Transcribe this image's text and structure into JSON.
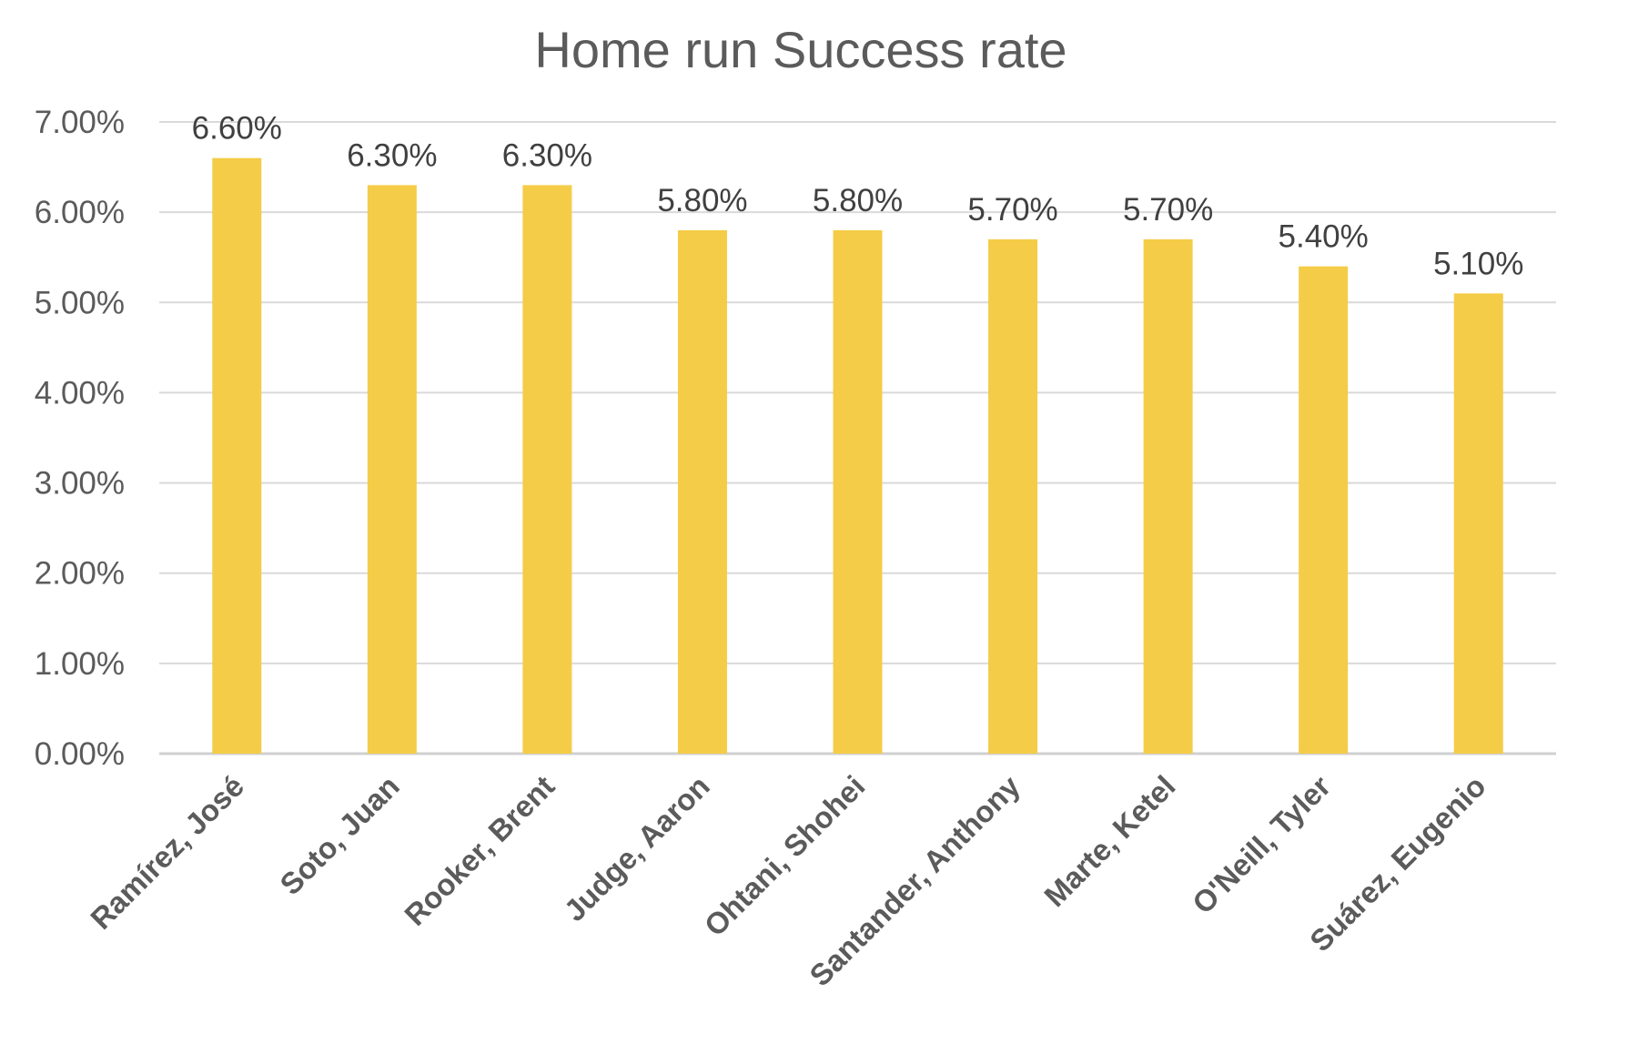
{
  "chart_data": {
    "type": "bar",
    "title": "Home run Success rate",
    "categories": [
      "Ramírez, José",
      "Soto, Juan",
      "Rooker, Brent",
      "Judge, Aaron",
      "Ohtani, Shohei",
      "Santander, Anthony",
      "Marte, Ketel",
      "O'Neill, Tyler",
      "Suárez, Eugenio"
    ],
    "values": [
      6.6,
      6.3,
      6.3,
      5.8,
      5.8,
      5.7,
      5.7,
      5.4,
      5.1
    ],
    "value_labels": [
      "6.60%",
      "6.30%",
      "6.30%",
      "5.80%",
      "5.80%",
      "5.70%",
      "5.70%",
      "5.40%",
      "5.10%"
    ],
    "ylim": [
      0,
      7
    ],
    "yticks": [
      0,
      1,
      2,
      3,
      4,
      5,
      6,
      7
    ],
    "ytick_labels": [
      "0.00%",
      "1.00%",
      "2.00%",
      "3.00%",
      "4.00%",
      "5.00%",
      "6.00%",
      "7.00%"
    ],
    "xlabel": "",
    "ylabel": "",
    "grid": true,
    "legend": "none",
    "bar_color": "#F4CC47"
  }
}
